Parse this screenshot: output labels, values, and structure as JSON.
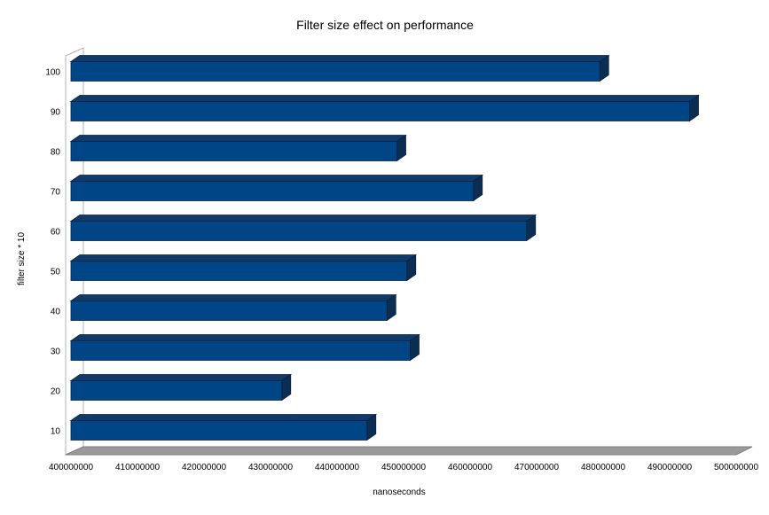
{
  "chart_data": {
    "type": "bar",
    "orientation": "horizontal",
    "title": "Filter size effect on performance",
    "xlabel": "nanoseconds",
    "ylabel": "filter size * 10",
    "categories": [
      "10",
      "20",
      "30",
      "40",
      "50",
      "60",
      "70",
      "80",
      "90",
      "100"
    ],
    "values": [
      444500000,
      431700000,
      451000000,
      447500000,
      450500000,
      468500000,
      460500000,
      449000000,
      493000000,
      479500000
    ],
    "xlim": [
      400000000,
      500000000
    ],
    "xticks": [
      400000000,
      410000000,
      420000000,
      430000000,
      440000000,
      450000000,
      460000000,
      470000000,
      480000000,
      490000000,
      500000000
    ],
    "xtick_labels": [
      "400000000",
      "410000000",
      "420000000",
      "430000000",
      "440000000",
      "450000000",
      "460000000",
      "470000000",
      "480000000",
      "490000000",
      "500000000"
    ],
    "grid": false,
    "legend": "none",
    "style": "3d",
    "colors": {
      "bar_front": "#004586",
      "bar_top": "#0f3a6a",
      "bar_side": "#0c2d52",
      "bar_edge": "#0b2240",
      "wall": "#b3b3b3",
      "floor": "#9a9a9a"
    }
  }
}
